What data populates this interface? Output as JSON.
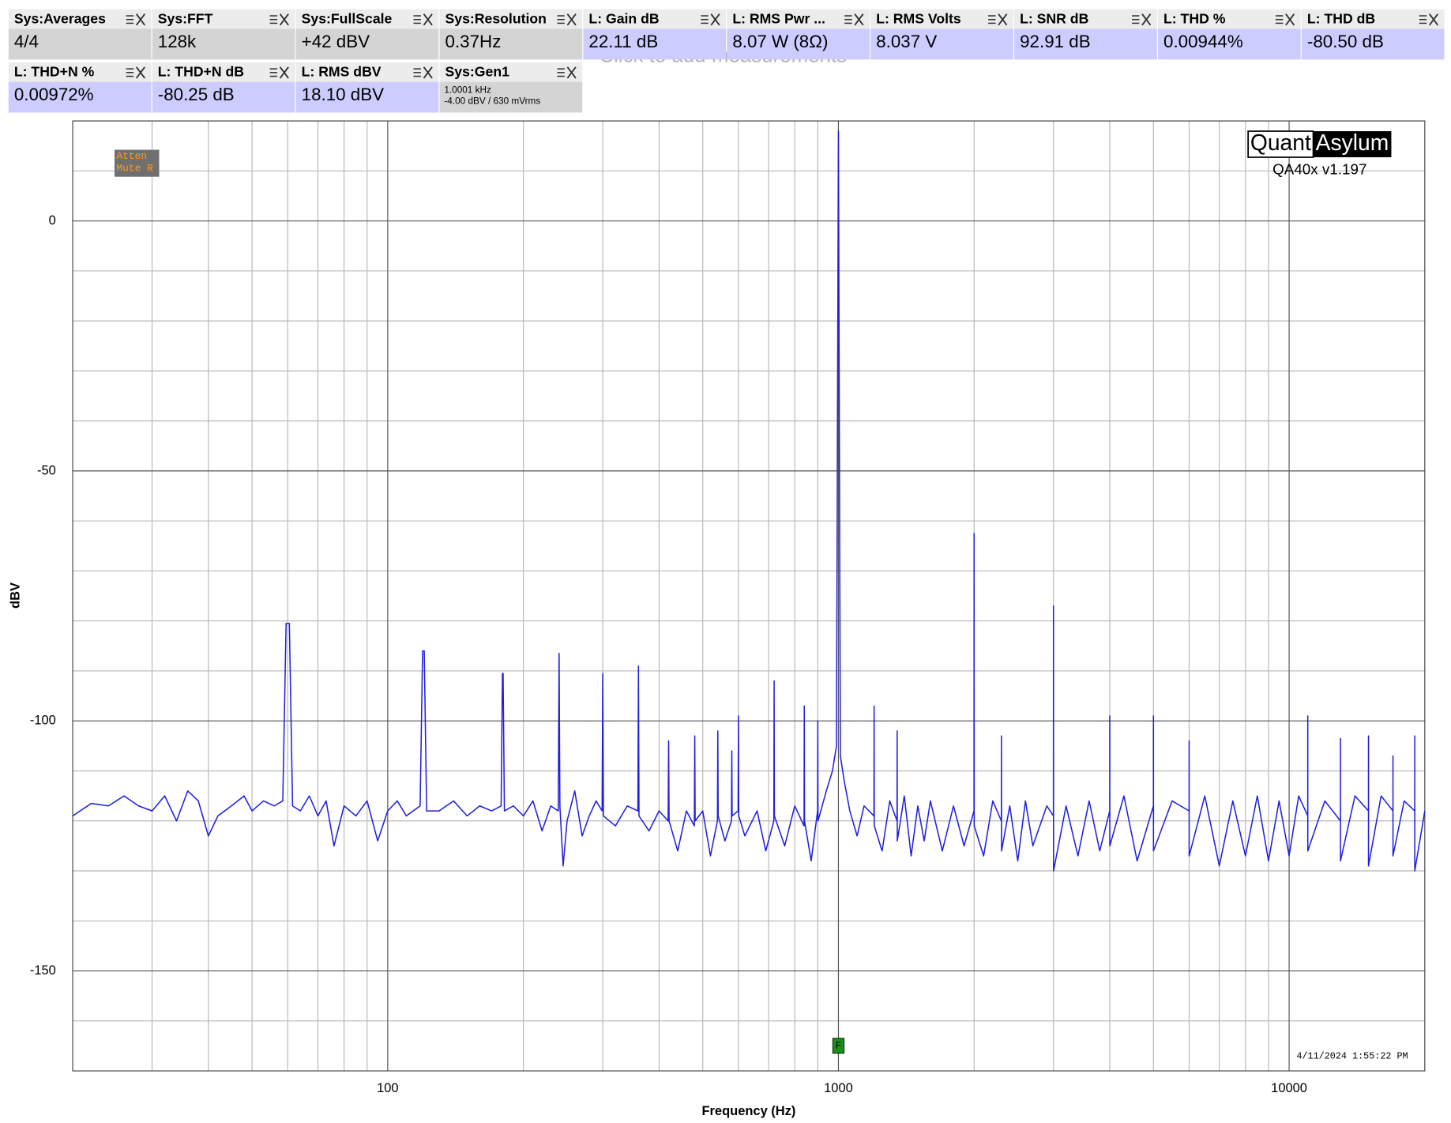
{
  "measurements": [
    {
      "title": "Sys:Averages",
      "value": "4/4",
      "value_color": "#d4d4d4"
    },
    {
      "title": "Sys:FFT",
      "value": "128k",
      "value_color": "#d4d4d4"
    },
    {
      "title": "Sys:FullScale",
      "value": "+42 dBV",
      "value_color": "#d4d4d4"
    },
    {
      "title": "Sys:Resolution",
      "value": "0.37Hz",
      "value_color": "#d4d4d4"
    },
    {
      "title": "L: Gain dB",
      "value": "22.11 dB",
      "value_color": "#ccccff"
    },
    {
      "title": "L: RMS Pwr ...",
      "value": "8.07 W (8Ω)",
      "value_color": "#ccccff"
    },
    {
      "title": "L: RMS Volts",
      "value": "8.037 V",
      "value_color": "#ccccff"
    },
    {
      "title": "L: SNR dB",
      "value": "92.91 dB",
      "value_color": "#ccccff"
    },
    {
      "title": "L: THD %",
      "value": "0.00944%",
      "value_color": "#ccccff"
    },
    {
      "title": "L: THD dB",
      "value": "-80.50 dB",
      "value_color": "#ccccff"
    },
    {
      "title": "L: THD+N %",
      "value": "0.00972%",
      "value_color": "#ccccff"
    },
    {
      "title": "L: THD+N dB",
      "value": "-80.25 dB",
      "value_color": "#ccccff"
    },
    {
      "title": "L: RMS dBV",
      "value": "18.10 dBV",
      "value_color": "#ccccff"
    },
    {
      "title": "Sys:Gen1",
      "value_lines": [
        "1.0001 kHz",
        "-4.00 dBV  / 630 mVrms"
      ],
      "value_color": "#d4d4d4"
    }
  ],
  "hint": "Click to add measurements",
  "chart_data": {
    "type": "line",
    "xlabel": "Frequency (Hz)",
    "ylabel": "dBV",
    "log_x": true,
    "xlim": [
      20,
      20000
    ],
    "ylim": [
      -170,
      20
    ],
    "xticks": [
      100,
      1000,
      10000
    ],
    "yticks": [
      -150,
      -100,
      -50,
      0
    ],
    "x_minor_gridlines": [
      30,
      40,
      50,
      60,
      70,
      80,
      90,
      200,
      300,
      400,
      500,
      600,
      700,
      800,
      900,
      2000,
      3000,
      4000,
      5000,
      6000,
      7000,
      8000,
      9000
    ],
    "y_minor_gridlines": [
      -160,
      -140,
      -130,
      -120,
      -110,
      -90,
      -80,
      -70,
      -60,
      -40,
      -30,
      -20,
      -10,
      10
    ],
    "grid": true,
    "color": "#1f1fe0",
    "x": [
      20,
      22,
      24,
      26,
      28,
      30,
      32,
      34,
      36,
      38,
      40,
      42,
      45,
      48,
      50,
      53,
      56,
      58.5,
      59.5,
      60.5,
      61.5,
      64,
      67,
      70,
      73,
      76,
      80,
      85,
      90,
      95,
      100,
      105,
      110,
      118,
      119.5,
      120.5,
      122,
      130,
      140,
      150,
      160,
      170,
      178.5,
      179.7,
      180.3,
      181.5,
      190,
      200,
      210,
      220,
      230,
      239,
      240,
      241,
      245,
      250,
      260,
      270,
      280,
      290,
      299,
      300,
      301,
      320,
      340,
      359,
      360,
      361,
      380,
      400,
      419,
      420,
      421,
      440,
      460,
      479,
      480,
      481,
      500,
      520,
      539,
      540,
      541,
      560,
      579,
      580,
      581,
      599,
      600,
      601,
      620,
      660,
      690,
      719,
      720,
      721,
      760,
      800,
      839,
      840,
      841,
      870,
      899,
      900,
      901,
      940,
      970,
      990,
      1000,
      1010,
      1030,
      1060,
      1100,
      1140,
      1199,
      1200,
      1201,
      1250,
      1300,
      1349,
      1350,
      1351,
      1400,
      1450,
      1500,
      1550,
      1600,
      1700,
      1800,
      1900,
      1999,
      2000,
      2001,
      2100,
      2200,
      2299,
      2300,
      2301,
      2400,
      2500,
      2600,
      2700,
      2900,
      2999,
      3000,
      3001,
      3200,
      3400,
      3600,
      3800,
      3999,
      4000,
      4001,
      4300,
      4600,
      4999,
      5000,
      5001,
      5500,
      5999,
      6000,
      6001,
      6500,
      7000,
      7500,
      8000,
      8500,
      9000,
      9500,
      10000,
      10500,
      10999,
      11000,
      11001,
      12000,
      12999,
      13000,
      13001,
      14000,
      14999,
      15000,
      15001,
      16000,
      16999,
      17000,
      17001,
      18000,
      18999,
      19000,
      19001,
      20000
    ],
    "values": [
      -119,
      -116.5,
      -117,
      -115,
      -117,
      -118,
      -115,
      -120,
      -114,
      -116,
      -123,
      -119,
      -117,
      -115,
      -118,
      -116,
      -117,
      -116,
      -80.5,
      -80.5,
      -117,
      -118,
      -115,
      -119,
      -116,
      -125,
      -117,
      -119,
      -116,
      -124,
      -118,
      -116,
      -119,
      -117,
      -86,
      -86,
      -118,
      -118,
      -116,
      -119,
      -117,
      -118,
      -117,
      -90.5,
      -90.5,
      -118,
      -117,
      -119,
      -116,
      -122,
      -117,
      -118,
      -86.5,
      -117,
      -129,
      -120,
      -114,
      -123,
      -119,
      -116,
      -118,
      -90.5,
      -119,
      -121,
      -117,
      -118,
      -89,
      -119,
      -122,
      -118,
      -120,
      -104,
      -120,
      -126,
      -118,
      -121,
      -103,
      -120,
      -118,
      -127,
      -120,
      -102,
      -119,
      -124,
      -120,
      -106,
      -119,
      -118,
      -99,
      -119,
      -123,
      -118,
      -126,
      -120,
      -92,
      -119,
      -125,
      -117,
      -121,
      -97,
      -120,
      -128,
      -118,
      -100,
      -120,
      -114,
      -110,
      -105,
      18,
      -107,
      -112,
      -118,
      -123,
      -117,
      -119,
      -97,
      -121,
      -126,
      -116,
      -120,
      -102,
      -124,
      -115,
      -127,
      -117,
      -124,
      -116,
      -126,
      -117,
      -125,
      -118,
      -62.5,
      -121,
      -127,
      -116,
      -120,
      -103,
      -126,
      -117,
      -128,
      -116,
      -125,
      -117,
      -119,
      -77,
      -130,
      -117,
      -127,
      -116,
      -126,
      -118,
      -99,
      -125,
      -115,
      -128,
      -117,
      -99,
      -126,
      -116,
      -118,
      -104,
      -127,
      -115,
      -129,
      -116,
      -127,
      -115,
      -128,
      -116,
      -127,
      -115,
      -119,
      -99,
      -126,
      -116,
      -120,
      -103.5,
      -128,
      -115,
      -118,
      -103,
      -129,
      -115,
      -118,
      -107,
      -127,
      -116,
      -118,
      -103,
      -130,
      -118
    ],
    "marker": {
      "label": "F",
      "x": 1000
    },
    "status_lines": [
      "Atten",
      "Mute R"
    ],
    "logo": [
      "Quant",
      "Asylum"
    ],
    "version": "QA40x v1.197",
    "timestamp": "4/11/2024 1:55:22 PM"
  }
}
